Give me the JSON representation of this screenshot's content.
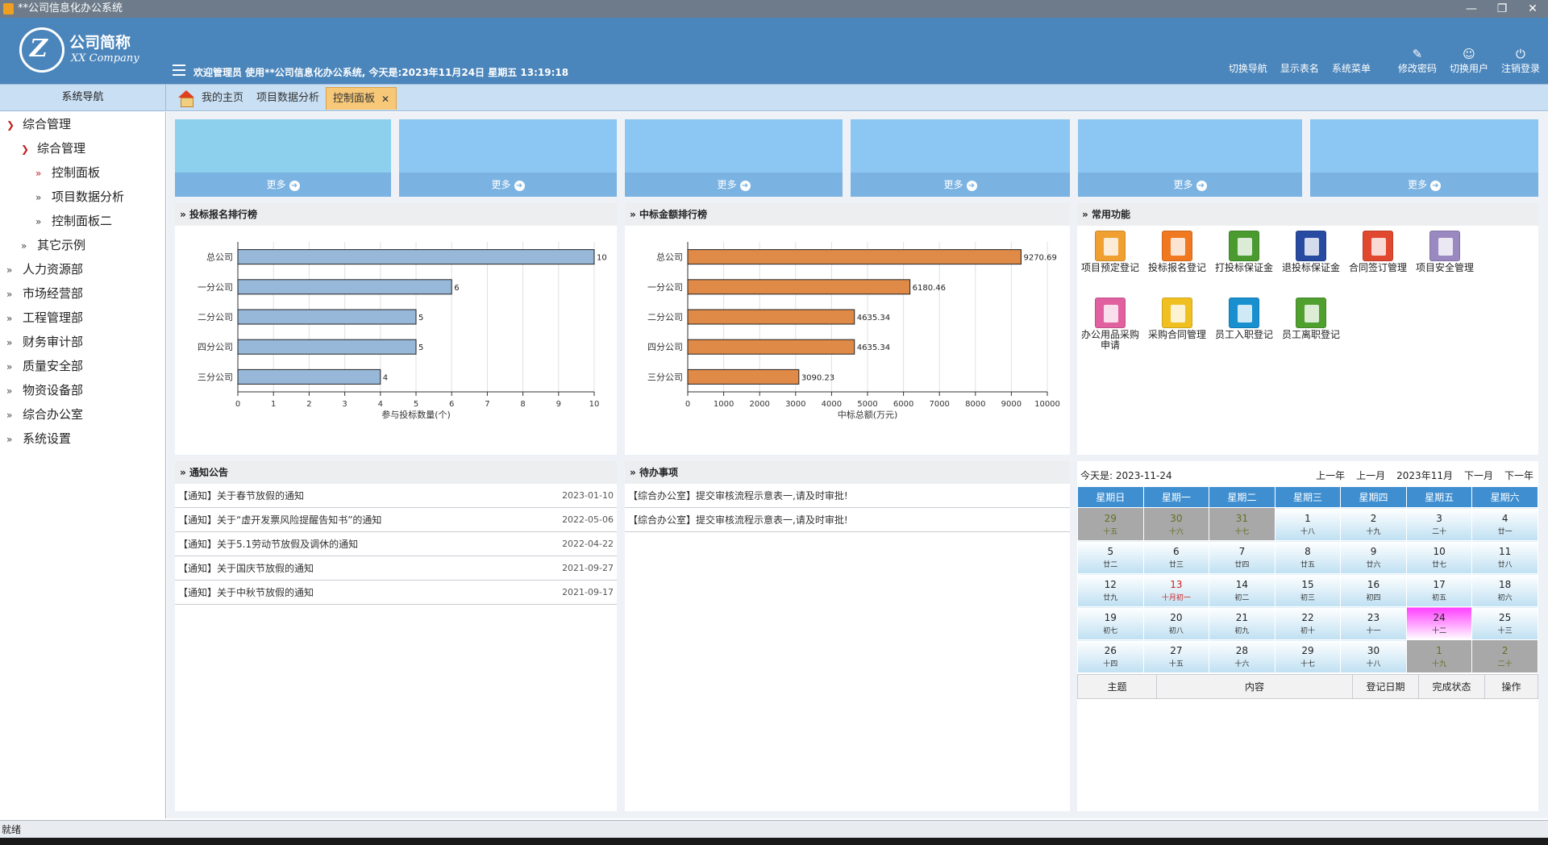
{
  "window": {
    "title": "**公司信息化办公系统",
    "controls": [
      "—",
      "❐",
      "✕"
    ]
  },
  "header": {
    "logo_mark": "Z",
    "logo_cn": "公司简称",
    "logo_en": "XX Company",
    "welcome": "欢迎管理员 使用**公司信息化办公系统, 今天是:2023年11月24日 星期五 13:19:18",
    "nav": [
      {
        "label": "切换导航",
        "icon": ""
      },
      {
        "label": "显示表名",
        "icon": ""
      },
      {
        "label": "系统菜单",
        "icon": ""
      },
      {
        "label": "修改密码",
        "icon": "edit-icon"
      },
      {
        "label": "切换用户",
        "icon": "user-icon"
      },
      {
        "label": "注销登录",
        "icon": "power-icon"
      }
    ]
  },
  "navbar": {
    "title": "系统导航"
  },
  "tabs": [
    {
      "label": "我的主页"
    },
    {
      "label": "项目数据分析"
    },
    {
      "label": "控制面板",
      "active": true,
      "close": "✕"
    }
  ],
  "sidebar": [
    {
      "label": "综合管理",
      "level": 0,
      "expanded": true
    },
    {
      "label": "综合管理",
      "level": 1,
      "expanded": true
    },
    {
      "label": "控制面板",
      "level": 2
    },
    {
      "label": "项目数据分析",
      "level": 2
    },
    {
      "label": "控制面板二",
      "level": 2
    },
    {
      "label": "其它示例",
      "level": 1
    },
    {
      "label": "人力资源部",
      "level": 0
    },
    {
      "label": "市场经营部",
      "level": 0
    },
    {
      "label": "工程管理部",
      "level": 0
    },
    {
      "label": "财务审计部",
      "level": 0
    },
    {
      "label": "质量安全部",
      "level": 0
    },
    {
      "label": "物资设备部",
      "level": 0
    },
    {
      "label": "综合办公室",
      "level": 0
    },
    {
      "label": "系统设置",
      "level": 0
    }
  ],
  "cards": {
    "more_label": "更多",
    "count": 6,
    "colors": [
      "#8cd0ee",
      "#8cc6f2"
    ]
  },
  "panels": {
    "bid_rank": "投标报名排行榜",
    "win_rank": "中标金额排行榜",
    "common": "常用功能",
    "notice": "通知公告",
    "todo": "待办事项"
  },
  "chart_data": [
    {
      "type": "bar",
      "orientation": "horizontal",
      "categories": [
        "总公司",
        "一分公司",
        "二分公司",
        "四分公司",
        "三分公司"
      ],
      "values": [
        10,
        6,
        5,
        5,
        4
      ],
      "value_labels": [
        "10",
        "6",
        "5",
        "5",
        "4"
      ],
      "xlabel": "参与投标数量(个)",
      "xlim": [
        0,
        10
      ],
      "ticks": [
        "0",
        "1",
        "2",
        "3",
        "4",
        "5",
        "6",
        "7",
        "8",
        "9",
        "10"
      ],
      "grid": true,
      "color": "#98b8da"
    },
    {
      "type": "bar",
      "orientation": "horizontal",
      "categories": [
        "总公司",
        "一分公司",
        "二分公司",
        "四分公司",
        "三分公司"
      ],
      "values": [
        9270.69,
        6180.46,
        4635.34,
        4635.34,
        3090.23
      ],
      "value_labels": [
        "9270.69",
        "6180.46",
        "4635.34",
        "4635.34",
        "3090.23"
      ],
      "xlabel": "中标总额(万元)",
      "xlim": [
        0,
        10000
      ],
      "ticks": [
        "0",
        "1000",
        "2000",
        "3000",
        "4000",
        "5000",
        "6000",
        "7000",
        "8000",
        "9000",
        "10000"
      ],
      "grid": true,
      "color": "#e08a48"
    }
  ],
  "functions": [
    {
      "label": "项目预定登记",
      "color": "#f0a030"
    },
    {
      "label": "投标报名登记",
      "color": "#f07820"
    },
    {
      "label": "打投标保证金",
      "color": "#4a9a30"
    },
    {
      "label": "退投标保证金",
      "color": "#284aa0"
    },
    {
      "label": "合同签订管理",
      "color": "#e04830"
    },
    {
      "label": "项目安全管理",
      "color": "#9a88c0"
    },
    {
      "label": "办公用品采购申请",
      "color": "#e060a0"
    },
    {
      "label": "采购合同管理",
      "color": "#f0c020"
    },
    {
      "label": "员工入职登记",
      "color": "#1890d0"
    },
    {
      "label": "员工离职登记",
      "color": "#50a030"
    }
  ],
  "notices": [
    {
      "text": "【通知】关于春节放假的通知",
      "date": "2023-01-10"
    },
    {
      "text": "【通知】关于“虚开发票风险提醒告知书”的通知",
      "date": "2022-05-06"
    },
    {
      "text": "【通知】关于5.1劳动节放假及调休的通知",
      "date": "2022-04-22"
    },
    {
      "text": "【通知】关于国庆节放假的通知",
      "date": "2021-09-27"
    },
    {
      "text": "【通知】关于中秋节放假的通知",
      "date": "2021-09-17"
    }
  ],
  "todos": [
    {
      "text": "【综合办公室】提交审核流程示意表一,请及时审批!"
    },
    {
      "text": "【综合办公室】提交审核流程示意表一,请及时审批!"
    }
  ],
  "calendar": {
    "today_label": "今天是: 2023-11-24",
    "controls": [
      "上一年",
      "上一月",
      "2023年11月",
      "下一月",
      "下一年"
    ],
    "weekdays": [
      "星期日",
      "星期一",
      "星期二",
      "星期三",
      "星期四",
      "星期五",
      "星期六"
    ],
    "weeks": [
      [
        [
          "29",
          "十五",
          "o"
        ],
        [
          "30",
          "十六",
          "o"
        ],
        [
          "31",
          "十七",
          "o"
        ],
        [
          "1",
          "十八",
          ""
        ],
        [
          "2",
          "十九",
          ""
        ],
        [
          "3",
          "二十",
          ""
        ],
        [
          "4",
          "廿一",
          ""
        ]
      ],
      [
        [
          "5",
          "廿二",
          ""
        ],
        [
          "6",
          "廿三",
          ""
        ],
        [
          "7",
          "廿四",
          ""
        ],
        [
          "8",
          "廿五",
          ""
        ],
        [
          "9",
          "廿六",
          ""
        ],
        [
          "10",
          "廿七",
          ""
        ],
        [
          "11",
          "廿八",
          ""
        ]
      ],
      [
        [
          "12",
          "廿九",
          ""
        ],
        [
          "13",
          "十月初一",
          "h"
        ],
        [
          "14",
          "初二",
          ""
        ],
        [
          "15",
          "初三",
          ""
        ],
        [
          "16",
          "初四",
          ""
        ],
        [
          "17",
          "初五",
          ""
        ],
        [
          "18",
          "初六",
          ""
        ]
      ],
      [
        [
          "19",
          "初七",
          ""
        ],
        [
          "20",
          "初八",
          ""
        ],
        [
          "21",
          "初九",
          ""
        ],
        [
          "22",
          "初十",
          ""
        ],
        [
          "23",
          "十一",
          ""
        ],
        [
          "24",
          "十二",
          "t"
        ],
        [
          "25",
          "十三",
          ""
        ]
      ],
      [
        [
          "26",
          "十四",
          ""
        ],
        [
          "27",
          "十五",
          ""
        ],
        [
          "28",
          "十六",
          ""
        ],
        [
          "29",
          "十七",
          ""
        ],
        [
          "30",
          "十八",
          ""
        ],
        [
          "1",
          "十九",
          "o"
        ],
        [
          "2",
          "二十",
          "o"
        ]
      ]
    ],
    "table_headers": [
      "主题",
      "内容",
      "登记日期",
      "完成状态",
      "操作"
    ]
  },
  "status": {
    "text": "就绪"
  }
}
